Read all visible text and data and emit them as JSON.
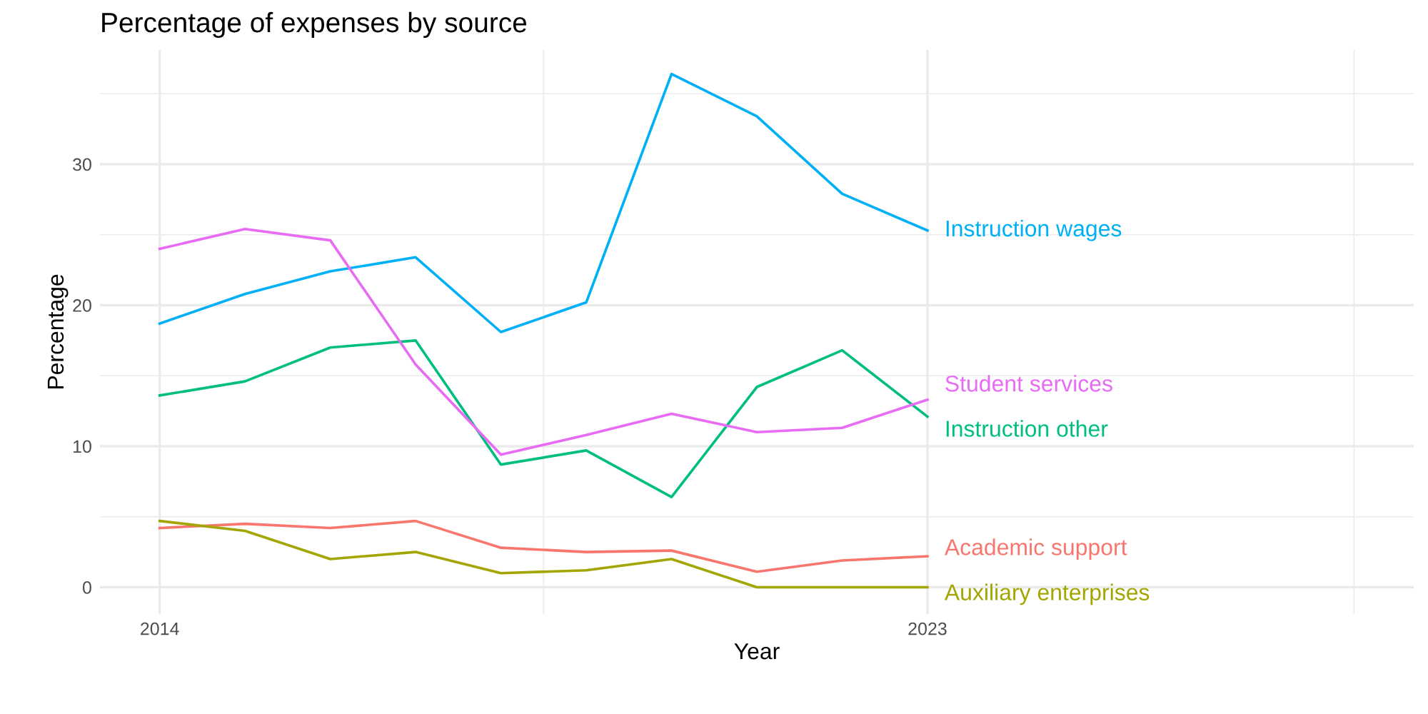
{
  "chart_data": {
    "type": "line",
    "title": "Percentage of expenses by source",
    "xlabel": "Year",
    "ylabel": "Percentage",
    "x": [
      2014,
      2015,
      2016,
      2017,
      2018,
      2019,
      2020,
      2021,
      2022,
      2023
    ],
    "series": [
      {
        "name": "Academic support",
        "color": "#F8766D",
        "values": [
          4.2,
          4.5,
          4.2,
          4.7,
          2.8,
          2.5,
          2.6,
          1.1,
          1.9,
          2.2
        ]
      },
      {
        "name": "Auxiliary enterprises",
        "color": "#A3A500",
        "values": [
          4.7,
          4.0,
          2.0,
          2.5,
          1.0,
          1.2,
          2.0,
          0,
          0,
          0
        ]
      },
      {
        "name": "Instruction other",
        "color": "#00BF7D",
        "values": [
          13.6,
          14.6,
          17.0,
          17.5,
          8.7,
          9.7,
          6.4,
          14.2,
          16.8,
          12.1
        ]
      },
      {
        "name": "Instruction wages",
        "color": "#00B0F6",
        "values": [
          18.7,
          20.8,
          22.4,
          23.4,
          18.1,
          20.2,
          36.4,
          33.4,
          27.9,
          25.3
        ]
      },
      {
        "name": "Student services",
        "color": "#E76BF3",
        "values": [
          24.0,
          25.4,
          24.6,
          15.8,
          9.4,
          10.8,
          12.3,
          11.0,
          11.3,
          13.3
        ]
      }
    ],
    "xlim": [
      2013.3,
      2028.7
    ],
    "ylim": [
      -1.9,
      38.1
    ],
    "xticks": [
      2014,
      {
        "value": 2018.5,
        "label": null
      },
      2023,
      {
        "value": 2028,
        "label": null
      }
    ],
    "yticks": [
      0,
      {
        "value": 5,
        "label": null
      },
      10,
      {
        "value": 15,
        "label": null
      },
      20,
      {
        "value": 25,
        "label": null
      },
      30,
      {
        "value": 35,
        "label": null
      }
    ],
    "grid": true,
    "legend": false,
    "line_style": "solid",
    "marker": "none"
  }
}
